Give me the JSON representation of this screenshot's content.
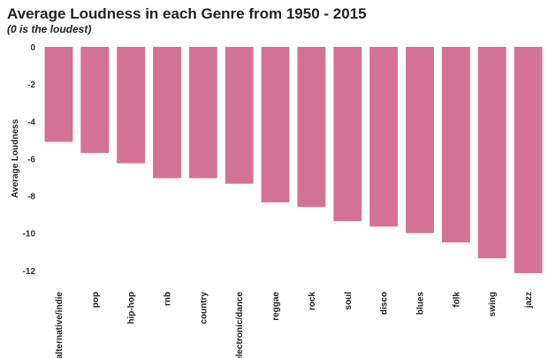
{
  "chart_data": {
    "type": "bar",
    "title": "Average Loudness in each Genre from 1950 - 2015",
    "subtitle": "(0 is the loudest)",
    "xlabel": "",
    "ylabel": "Average Loudness",
    "categories": [
      "alternative/indie",
      "pop",
      "hip-hop",
      "rnb",
      "country",
      "electronic/dance",
      "reggae",
      "rock",
      "soul",
      "disco",
      "blues",
      "folk",
      "swing",
      "jazz"
    ],
    "values": [
      -5.1,
      -5.7,
      -6.25,
      -7.05,
      -7.05,
      -7.35,
      -8.35,
      -8.6,
      -9.35,
      -9.65,
      -10.0,
      -10.5,
      -11.35,
      -12.15
    ],
    "yticks": [
      0,
      -2,
      -4,
      -6,
      -8,
      -10,
      -12
    ],
    "ylim": [
      -12.5,
      0
    ],
    "grid": false,
    "legend": "none",
    "bar_color": "#d47295"
  }
}
